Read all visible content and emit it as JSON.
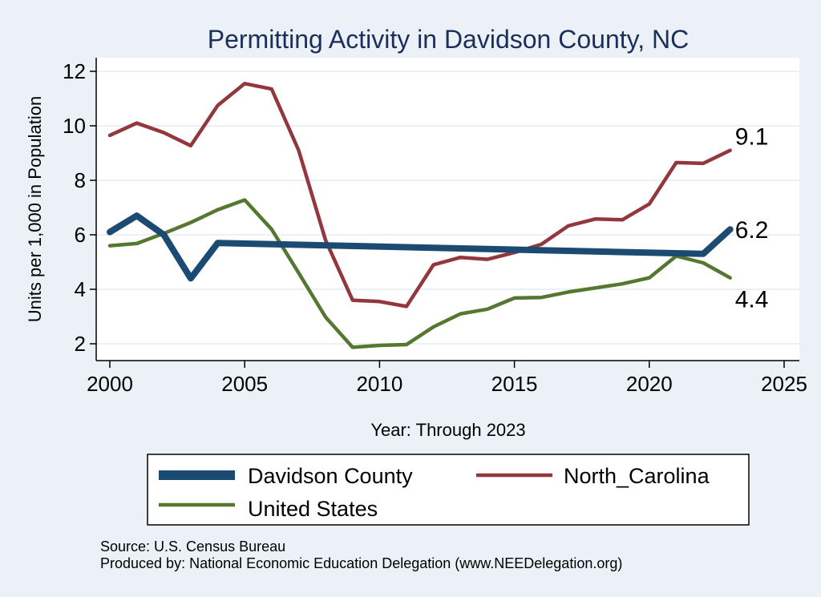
{
  "chart_data": {
    "type": "line",
    "title": "Permitting Activity in Davidson County, NC",
    "xlabel": "Year: Through 2023",
    "ylabel": "Units per 1,000 in Population",
    "xlim": [
      2000,
      2025
    ],
    "ylim": [
      1.5,
      12.5
    ],
    "xticks": [
      2000,
      2005,
      2010,
      2015,
      2020,
      2025
    ],
    "yticks": [
      2,
      4,
      6,
      8,
      10,
      12
    ],
    "grid": true,
    "series": [
      {
        "name": "Davidson County",
        "color": "#1b4a73",
        "x": [
          2000,
          2001,
          2002,
          2003,
          2004,
          2022,
          2023
        ],
        "values": [
          6.1,
          6.7,
          6.0,
          4.4,
          5.7,
          5.3,
          6.2
        ],
        "end_label": "6.2"
      },
      {
        "name": "North_Carolina",
        "color": "#93373f",
        "x": [
          2000,
          2001,
          2002,
          2003,
          2004,
          2005,
          2006,
          2007,
          2008,
          2009,
          2010,
          2011,
          2012,
          2013,
          2014,
          2015,
          2016,
          2017,
          2018,
          2019,
          2020,
          2021,
          2022,
          2023
        ],
        "values": [
          9.65,
          10.1,
          9.75,
          9.27,
          10.75,
          11.55,
          11.35,
          9.1,
          5.8,
          3.6,
          3.55,
          3.37,
          4.9,
          5.17,
          5.1,
          5.35,
          5.65,
          6.33,
          6.58,
          6.55,
          7.13,
          8.65,
          8.62,
          9.1
        ],
        "end_label": "9.1"
      },
      {
        "name": "United States",
        "color": "#56772f",
        "x": [
          2000,
          2001,
          2002,
          2003,
          2004,
          2005,
          2006,
          2007,
          2008,
          2009,
          2010,
          2011,
          2012,
          2013,
          2014,
          2015,
          2016,
          2017,
          2018,
          2019,
          2020,
          2021,
          2022,
          2023
        ],
        "values": [
          5.6,
          5.68,
          6.05,
          6.45,
          6.92,
          7.28,
          6.2,
          4.6,
          2.98,
          1.87,
          1.94,
          1.97,
          2.62,
          3.1,
          3.27,
          3.68,
          3.7,
          3.9,
          4.05,
          4.2,
          4.42,
          5.22,
          4.97,
          4.42
        ],
        "end_label": "4.4"
      }
    ],
    "legend": {
      "position": "bottom",
      "entries": [
        "Davidson County",
        "North_Carolina",
        "United States"
      ]
    },
    "source_note": "Source: U.S. Census Bureau",
    "producer_note": "Produced by: National Economic Education Delegation (www.NEEDelegation.org)"
  }
}
